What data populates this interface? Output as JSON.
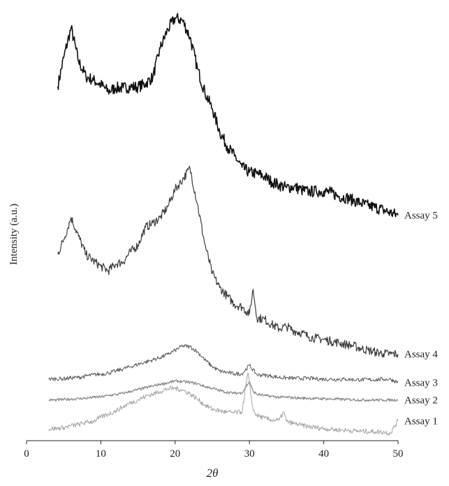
{
  "chart_data": {
    "type": "line",
    "title": "",
    "xlabel": "2θ",
    "ylabel": "Intensity (a.u.)",
    "xlim": [
      0,
      50
    ],
    "xticks": [
      0,
      10,
      20,
      30,
      40,
      50
    ],
    "grid": false,
    "legend": "none (series labeled at right end of each trace)",
    "series": [
      {
        "name": "Assay 5",
        "color": "#111111",
        "x": [
          4.2,
          5,
          6,
          7,
          8,
          9,
          10,
          11,
          12,
          13,
          14,
          15,
          16,
          17,
          18,
          19,
          20,
          21,
          22,
          23,
          24,
          25,
          26,
          27,
          28,
          29,
          30,
          31,
          32,
          33,
          34,
          35,
          36,
          37,
          38,
          39,
          40,
          41,
          42,
          43,
          44,
          45,
          46,
          47,
          48,
          49,
          50
        ],
        "y": [
          72.4,
          78.8,
          85.4,
          78.0,
          74.6,
          73.8,
          72.8,
          71.3,
          72.1,
          72.1,
          72.3,
          72.3,
          73.0,
          74.5,
          80.9,
          85.0,
          87.6,
          87.0,
          83.3,
          76.4,
          71.1,
          67.5,
          62.4,
          59.2,
          57.0,
          54.5,
          53.4,
          53.1,
          52.5,
          51.3,
          50.6,
          50.0,
          50.2,
          49.5,
          49.1,
          49.2,
          49.2,
          48.9,
          48.1,
          47.8,
          47.2,
          46.6,
          46.0,
          45.6,
          45.1,
          44.4,
          43.9
        ]
      },
      {
        "name": "Assay 4",
        "color": "#3d3d3d",
        "x": [
          4.2,
          5,
          6,
          7,
          8,
          9,
          10,
          11,
          12,
          13,
          14,
          15,
          16,
          17,
          18,
          19,
          20,
          21,
          22,
          23,
          24,
          25,
          26,
          27,
          28,
          29,
          30,
          30.5,
          31,
          32,
          33,
          34,
          35,
          36,
          37,
          38,
          39,
          40,
          41,
          42,
          43,
          44,
          45,
          46,
          47,
          48,
          49,
          50
        ],
        "y": [
          35.3,
          38.5,
          43.4,
          39.2,
          35.2,
          33.8,
          32.6,
          31.6,
          33.1,
          33.6,
          35.8,
          37.3,
          41.2,
          42.2,
          43.4,
          45.8,
          49.6,
          51.8,
          54.3,
          46.4,
          37.5,
          31.0,
          27.9,
          26.0,
          24.2,
          23.6,
          22.0,
          27.5,
          21.2,
          20.9,
          19.7,
          18.8,
          19.3,
          18.3,
          17.9,
          17.0,
          16.7,
          16.4,
          16.0,
          15.7,
          15.3,
          15.0,
          14.4,
          14.0,
          13.6,
          13.3,
          13.2,
          13.2
        ]
      },
      {
        "name": "Assay 3",
        "color": "#5a5a5a",
        "x": [
          3,
          4,
          5,
          6,
          7,
          8,
          9,
          10,
          11,
          12,
          13,
          14,
          15,
          16,
          17,
          18,
          19,
          20,
          21,
          22,
          23,
          24,
          25,
          26,
          27,
          28,
          29,
          30,
          31,
          32,
          33,
          34,
          35,
          36,
          37,
          38,
          39,
          40,
          41,
          42,
          43,
          44,
          45,
          46,
          47,
          48,
          49,
          50
        ],
        "y": [
          7.6,
          7.7,
          7.7,
          7.9,
          8.0,
          8.3,
          8.6,
          8.7,
          9.0,
          9.4,
          9.9,
          10.4,
          10.9,
          11.4,
          11.9,
          12.4,
          13.1,
          14.0,
          15.0,
          14.8,
          13.7,
          11.9,
          10.4,
          9.4,
          9.1,
          8.8,
          8.8,
          10.7,
          8.6,
          8.5,
          8.3,
          8.0,
          7.9,
          7.8,
          7.8,
          7.8,
          7.7,
          7.6,
          7.6,
          7.6,
          7.6,
          7.5,
          7.5,
          7.5,
          7.5,
          7.6,
          7.6,
          6.9
        ]
      },
      {
        "name": "Assay 2",
        "color": "#8c8c8c",
        "x": [
          3,
          4,
          5,
          6,
          7,
          8,
          9,
          10,
          11,
          12,
          13,
          14,
          15,
          16,
          17,
          18,
          19,
          20,
          21,
          22,
          23,
          24,
          25,
          26,
          27,
          28,
          29,
          30,
          30.5,
          31,
          32,
          33,
          34,
          35,
          36,
          37,
          38,
          39,
          40,
          41,
          42,
          43,
          44,
          45,
          46,
          47,
          48,
          49,
          50
        ],
        "y": [
          3.0,
          3.0,
          3.1,
          3.2,
          3.3,
          3.4,
          3.6,
          3.7,
          4.0,
          4.2,
          4.5,
          4.9,
          5.3,
          5.7,
          6.1,
          6.5,
          6.8,
          7.2,
          7.1,
          6.9,
          6.6,
          6.0,
          5.6,
          5.1,
          4.7,
          4.5,
          4.6,
          7.1,
          4.9,
          4.3,
          4.0,
          3.8,
          3.6,
          3.6,
          3.5,
          3.4,
          3.4,
          3.3,
          3.3,
          3.2,
          3.2,
          3.1,
          3.1,
          3.0,
          3.0,
          3.0,
          3.0,
          3.0,
          3.0
        ]
      },
      {
        "name": "Assay 1",
        "color": "#a3a3a3",
        "x": [
          3,
          4,
          5,
          6,
          7,
          8,
          9,
          10,
          11,
          12,
          13,
          14,
          15,
          16,
          17,
          18,
          19,
          20,
          21,
          22,
          23,
          24,
          25,
          26,
          27,
          28,
          29,
          29.8,
          30.5,
          31,
          32,
          33,
          34,
          34.6,
          35,
          36,
          37,
          38,
          39,
          40,
          41,
          42,
          43,
          44,
          45,
          46,
          47,
          48,
          49,
          50
        ],
        "y": [
          -3.4,
          -3.3,
          -3.1,
          -2.7,
          -2.4,
          -2.0,
          -1.7,
          -0.8,
          -0.1,
          0.6,
          1.5,
          2.4,
          3.0,
          3.8,
          4.3,
          4.9,
          5.5,
          5.6,
          5.2,
          4.4,
          3.2,
          1.9,
          1.0,
          0.6,
          0.3,
          0.2,
          0.4,
          9.0,
          0.7,
          -0.4,
          -1.0,
          -1.4,
          -1.5,
          0.4,
          -1.8,
          -2.2,
          -2.6,
          -2.9,
          -3.1,
          -3.3,
          -3.5,
          -3.6,
          -3.7,
          -3.8,
          -3.9,
          -4.0,
          -4.0,
          -4.1,
          -4.3,
          -1.6
        ]
      }
    ]
  }
}
